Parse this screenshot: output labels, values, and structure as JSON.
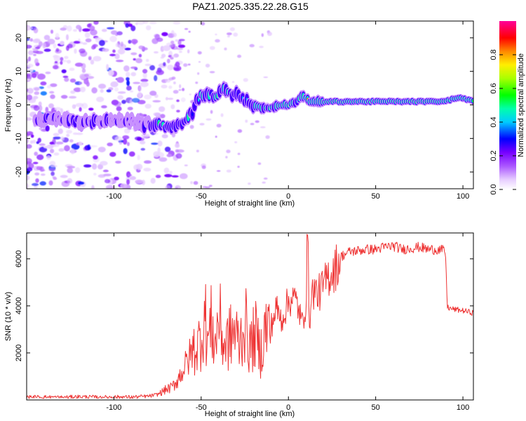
{
  "title": "PAZ1.2025.335.22.28.G15",
  "chart_data": [
    {
      "type": "heatmap",
      "name": "spectrogram",
      "xlabel": "Height of straight line (km)",
      "ylabel": "Frequency (Hz)",
      "xlim": [
        -150,
        106
      ],
      "ylim": [
        -25,
        25
      ],
      "xticks": [
        -100,
        -50,
        0,
        50,
        100
      ],
      "yticks": [
        -20,
        -10,
        0,
        10,
        20
      ],
      "ridge": [
        [
          -140,
          -4
        ],
        [
          -130,
          -4
        ],
        [
          -120,
          -5
        ],
        [
          -110,
          -5
        ],
        [
          -100,
          -5
        ],
        [
          -90,
          -5
        ],
        [
          -80,
          -6
        ],
        [
          -72,
          -6
        ],
        [
          -65,
          -7
        ],
        [
          -58,
          -4
        ],
        [
          -55,
          -2
        ],
        [
          -52,
          2
        ],
        [
          -48,
          3
        ],
        [
          -45,
          3
        ],
        [
          -40,
          3
        ],
        [
          -36,
          5
        ],
        [
          -32,
          3
        ],
        [
          -28,
          3
        ],
        [
          -24,
          1
        ],
        [
          -20,
          0
        ],
        [
          -15,
          -1
        ],
        [
          -10,
          -1
        ],
        [
          -5,
          0
        ],
        [
          0,
          0
        ],
        [
          5,
          1
        ],
        [
          8,
          3
        ],
        [
          12,
          1
        ],
        [
          20,
          1
        ],
        [
          30,
          1
        ],
        [
          40,
          1
        ],
        [
          50,
          1
        ],
        [
          60,
          1
        ],
        [
          70,
          1
        ],
        [
          80,
          1
        ],
        [
          90,
          1
        ],
        [
          95,
          2
        ],
        [
          100,
          2
        ],
        [
          106,
          1
        ]
      ],
      "colorbar": {
        "label": "Normalized spectral amplitude",
        "ticks": [
          "0.0",
          "0.2",
          "0.4",
          "0.6",
          "0.8"
        ],
        "range": [
          0,
          1
        ],
        "colors": [
          "#ffffff",
          "#cc99ff",
          "#8800ff",
          "#0000ff",
          "#00ffff",
          "#00ff00",
          "#ffff00",
          "#ff8800",
          "#ff0000",
          "#ff00aa"
        ]
      }
    },
    {
      "type": "line",
      "name": "snr",
      "xlabel": "Height of straight line (km)",
      "ylabel": "SNR (10 * v/v)",
      "xlim": [
        -150,
        106
      ],
      "ylim": [
        0,
        7100
      ],
      "xticks": [
        -100,
        -50,
        0,
        50,
        100
      ],
      "yticks": [
        2000,
        4000,
        6000
      ],
      "color": "#ee3333",
      "x": [
        -150,
        -140,
        -130,
        -120,
        -110,
        -100,
        -90,
        -80,
        -75,
        -70,
        -67,
        -64,
        -61,
        -58,
        -55,
        -52,
        -50,
        -48,
        -46,
        -44,
        -42,
        -40,
        -37,
        -34,
        -31,
        -28,
        -25,
        -22,
        -19,
        -16,
        -13,
        -10,
        -7,
        -4,
        -1,
        2,
        5,
        8,
        10,
        11,
        12,
        14,
        17,
        20,
        23,
        26,
        28,
        30,
        35,
        40,
        45,
        50,
        55,
        60,
        62,
        65,
        70,
        75,
        80,
        85,
        89,
        90,
        91,
        92,
        95,
        100,
        106
      ],
      "y": [
        120,
        130,
        110,
        140,
        120,
        130,
        120,
        160,
        230,
        450,
        520,
        800,
        1200,
        1600,
        2100,
        2300,
        2700,
        3600,
        2500,
        3300,
        2200,
        3600,
        2300,
        2600,
        2900,
        2400,
        3300,
        2200,
        2800,
        2000,
        3100,
        3100,
        3900,
        3400,
        4000,
        4400,
        4100,
        3200,
        4200,
        7000,
        3400,
        4700,
        4500,
        4800,
        5300,
        5500,
        5750,
        6100,
        6300,
        6350,
        6400,
        6400,
        6500,
        6550,
        6500,
        6400,
        6450,
        6500,
        6400,
        6400,
        6350,
        6300,
        4000,
        3900,
        3850,
        3800,
        3700
      ]
    }
  ]
}
